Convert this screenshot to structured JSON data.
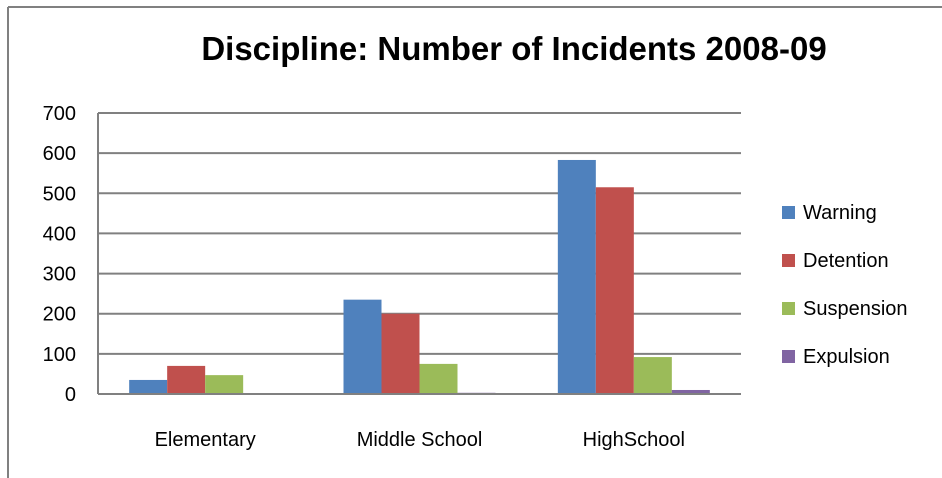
{
  "chart_data": {
    "type": "bar",
    "title": "Discipline: Number of Incidents 2008-09",
    "xlabel": "",
    "ylabel": "",
    "categories": [
      "Elementary",
      "Middle School",
      "HighSchool"
    ],
    "series": [
      {
        "name": "Warning",
        "color": "#4f81bd",
        "values": [
          35,
          235,
          583
        ]
      },
      {
        "name": "Detention",
        "color": "#c0504d",
        "values": [
          70,
          200,
          515
        ]
      },
      {
        "name": "Suspension",
        "color": "#9bbb59",
        "values": [
          47,
          75,
          92
        ]
      },
      {
        "name": "Expulsion",
        "color": "#8064a2",
        "values": [
          0,
          3,
          10
        ]
      }
    ],
    "ylim": [
      0,
      700
    ],
    "yticks": [
      0,
      100,
      200,
      300,
      400,
      500,
      600,
      700
    ],
    "grid": true,
    "legend_position": "right"
  }
}
